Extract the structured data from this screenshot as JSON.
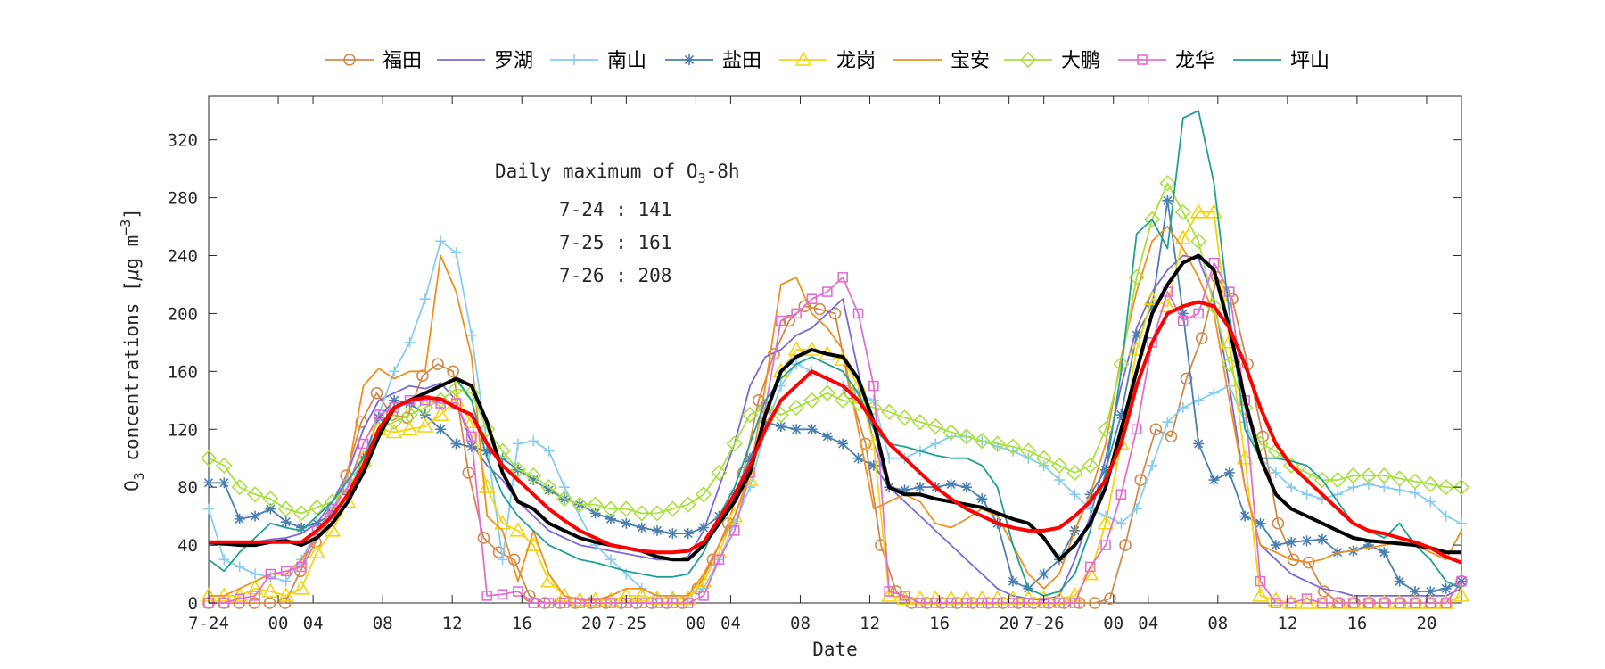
{
  "chart_data": {
    "type": "line",
    "xlabel": "Date",
    "ylabel_main": "O",
    "ylabel_sub": "3",
    "ylabel_rest": " concentrations [",
    "ylabel_mu": "μ",
    "ylabel_unit": "g m",
    "ylabel_sup": "−3",
    "ylabel_end": "]",
    "ylim": [
      0,
      350
    ],
    "yticks": [
      0,
      40,
      80,
      120,
      160,
      200,
      240,
      280,
      320
    ],
    "xlim": [
      0,
      72
    ],
    "xticks": [
      {
        "x": 0,
        "label": "7-24"
      },
      {
        "x": 4,
        "label": "00"
      },
      {
        "x": 6,
        "label": "04"
      },
      {
        "x": 10,
        "label": "08"
      },
      {
        "x": 14,
        "label": "12"
      },
      {
        "x": 18,
        "label": "16"
      },
      {
        "x": 22,
        "label": "20"
      },
      {
        "x": 24,
        "label": "7-25"
      },
      {
        "x": 28,
        "label": "00"
      },
      {
        "x": 30,
        "label": "04"
      },
      {
        "x": 34,
        "label": "08"
      },
      {
        "x": 38,
        "label": "12"
      },
      {
        "x": 42,
        "label": "16"
      },
      {
        "x": 46,
        "label": "20"
      },
      {
        "x": 48,
        "label": "7-26"
      },
      {
        "x": 52,
        "label": "00"
      },
      {
        "x": 54,
        "label": "04"
      },
      {
        "x": 58,
        "label": "08"
      },
      {
        "x": 62,
        "label": "12"
      },
      {
        "x": 66,
        "label": "16"
      },
      {
        "x": 70,
        "label": "20"
      }
    ],
    "annotation": {
      "title_main": "Daily maximum of O",
      "title_sub": "3",
      "title_end": "-8h",
      "lines": [
        "7-24 : 141",
        "7-25 : 161",
        "7-26 : 208"
      ]
    },
    "legend_position": "top",
    "grid": false,
    "series": [
      {
        "name": "福田",
        "color": "#d08a4e",
        "marker": "circle",
        "values": [
          0,
          0,
          0,
          0,
          0,
          0,
          22,
          42,
          60,
          88,
          125,
          145,
          130,
          128,
          157,
          165,
          160,
          90,
          45,
          35,
          30,
          5,
          0,
          0,
          0,
          0,
          0,
          0,
          0,
          0,
          0,
          0,
          10,
          30,
          55,
          90,
          140,
          172,
          195,
          205,
          203,
          200,
          145,
          110,
          40,
          8,
          0,
          0,
          0,
          0,
          0,
          0,
          0,
          0,
          0,
          0,
          0,
          0,
          0,
          3,
          40,
          85,
          120,
          115,
          155,
          183,
          225,
          210,
          165,
          115,
          55,
          30,
          28,
          8,
          0,
          0,
          0,
          0,
          0,
          0,
          0,
          0,
          15
        ]
      },
      {
        "name": "罗湖",
        "color": "#7b68d8",
        "marker": "none",
        "values": [
          40,
          40,
          40,
          42,
          44,
          45,
          48,
          55,
          70,
          90,
          120,
          140,
          145,
          150,
          148,
          152,
          140,
          110,
          95,
          85,
          70,
          60,
          50,
          45,
          40,
          38,
          36,
          34,
          32,
          30,
          30,
          32,
          50,
          80,
          110,
          150,
          170,
          175,
          185,
          190,
          200,
          210,
          160,
          110,
          80,
          70,
          60,
          50,
          40,
          30,
          20,
          10,
          5,
          3,
          2,
          5,
          30,
          60,
          100,
          150,
          190,
          215,
          230,
          240,
          238,
          210,
          150,
          80,
          40,
          30,
          20,
          15,
          10,
          8,
          5,
          5,
          5,
          5,
          5,
          5,
          5,
          10
        ]
      },
      {
        "name": "南山",
        "color": "#88ccf0",
        "marker": "plus",
        "values": [
          65,
          30,
          25,
          20,
          18,
          15,
          30,
          50,
          65,
          85,
          95,
          130,
          160,
          180,
          210,
          250,
          242,
          185,
          110,
          30,
          110,
          112,
          105,
          80,
          60,
          40,
          30,
          20,
          10,
          5,
          5,
          5,
          10,
          30,
          55,
          80,
          120,
          150,
          165,
          160,
          155,
          150,
          145,
          140,
          100,
          100,
          105,
          110,
          115,
          115,
          112,
          108,
          105,
          100,
          95,
          85,
          75,
          65,
          60,
          55,
          65,
          95,
          125,
          135,
          140,
          145,
          150,
          125,
          100,
          90,
          80,
          75,
          72,
          75,
          80,
          82,
          80,
          78,
          76,
          70,
          60,
          55
        ]
      },
      {
        "name": "盐田",
        "color": "#4a7fb0",
        "marker": "star",
        "values": [
          83,
          83,
          58,
          60,
          65,
          56,
          52,
          55,
          62,
          75,
          100,
          128,
          140,
          138,
          130,
          120,
          110,
          108,
          105,
          100,
          92,
          85,
          78,
          72,
          68,
          62,
          58,
          55,
          52,
          50,
          48,
          48,
          52,
          60,
          75,
          100,
          125,
          122,
          120,
          120,
          115,
          110,
          100,
          95,
          80,
          78,
          80,
          80,
          82,
          80,
          72,
          55,
          15,
          10,
          20,
          30,
          50,
          75,
          92,
          130,
          185,
          205,
          278,
          200,
          110,
          85,
          90,
          60,
          55,
          40,
          42,
          43,
          44,
          35,
          36,
          40,
          35,
          15,
          8,
          8,
          10,
          15
        ]
      },
      {
        "name": "龙岗",
        "color": "#f4d50c",
        "marker": "triangle",
        "values": [
          5,
          5,
          5,
          10,
          8,
          5,
          10,
          35,
          50,
          70,
          100,
          120,
          118,
          120,
          122,
          130,
          140,
          125,
          80,
          55,
          50,
          40,
          15,
          5,
          2,
          2,
          2,
          5,
          5,
          3,
          3,
          3,
          15,
          35,
          60,
          85,
          130,
          160,
          175,
          175,
          172,
          168,
          150,
          110,
          5,
          3,
          3,
          3,
          3,
          3,
          3,
          3,
          3,
          3,
          3,
          3,
          5,
          20,
          55,
          110,
          175,
          210,
          205,
          252,
          270,
          270,
          180,
          100,
          5,
          2,
          0,
          0,
          0,
          0,
          0,
          0,
          0,
          0,
          0,
          0,
          0,
          5
        ]
      },
      {
        "name": "宝安",
        "color": "#f09020",
        "marker": "none",
        "values": [
          5,
          5,
          10,
          15,
          20,
          20,
          30,
          45,
          60,
          90,
          150,
          162,
          155,
          160,
          160,
          240,
          215,
          170,
          60,
          50,
          15,
          50,
          20,
          5,
          2,
          2,
          5,
          10,
          10,
          5,
          5,
          5,
          20,
          40,
          60,
          90,
          150,
          220,
          225,
          200,
          190,
          175,
          120,
          65,
          70,
          75,
          70,
          55,
          52,
          58,
          65,
          60,
          40,
          20,
          10,
          20,
          50,
          75,
          110,
          170,
          215,
          250,
          260,
          245,
          225,
          200,
          140,
          80,
          40,
          35,
          30,
          28,
          30,
          35,
          36,
          38,
          40,
          42,
          40,
          35,
          30,
          50
        ]
      },
      {
        "name": "大鹏",
        "color": "#a8e040",
        "marker": "diamond",
        "values": [
          100,
          95,
          80,
          75,
          72,
          65,
          62,
          66,
          70,
          80,
          95,
          120,
          125,
          130,
          135,
          140,
          148,
          145,
          120,
          105,
          92,
          88,
          80,
          72,
          68,
          68,
          65,
          65,
          62,
          62,
          65,
          68,
          75,
          90,
          110,
          130,
          135,
          130,
          135,
          140,
          145,
          140,
          138,
          135,
          132,
          128,
          125,
          122,
          118,
          115,
          112,
          110,
          108,
          105,
          100,
          95,
          90,
          95,
          120,
          165,
          225,
          265,
          290,
          270,
          250,
          205,
          165,
          135,
          110,
          105,
          95,
          90,
          85,
          85,
          88,
          88,
          88,
          86,
          84,
          82,
          80,
          80
        ]
      },
      {
        "name": "龙华",
        "color": "#e070d0",
        "marker": "square",
        "values": [
          0,
          0,
          3,
          5,
          20,
          22,
          25,
          50,
          65,
          80,
          110,
          130,
          135,
          140,
          140,
          138,
          138,
          115,
          5,
          6,
          8,
          0,
          0,
          0,
          0,
          0,
          0,
          0,
          0,
          0,
          0,
          0,
          5,
          30,
          50,
          90,
          135,
          195,
          200,
          210,
          215,
          225,
          200,
          150,
          8,
          5,
          0,
          0,
          0,
          0,
          0,
          0,
          0,
          0,
          0,
          0,
          0,
          25,
          40,
          75,
          120,
          180,
          215,
          195,
          200,
          235,
          215,
          140,
          15,
          0,
          0,
          3,
          0,
          0,
          0,
          0,
          0,
          0,
          0,
          0,
          0,
          15
        ]
      },
      {
        "name": "坪山",
        "color": "#20a090",
        "marker": "none",
        "values": [
          30,
          22,
          35,
          45,
          55,
          52,
          50,
          60,
          70,
          85,
          100,
          120,
          135,
          140,
          145,
          150,
          155,
          140,
          100,
          75,
          60,
          50,
          40,
          35,
          30,
          28,
          25,
          22,
          20,
          18,
          18,
          20,
          35,
          60,
          80,
          110,
          140,
          155,
          165,
          170,
          165,
          160,
          145,
          120,
          110,
          108,
          105,
          102,
          100,
          100,
          95,
          80,
          40,
          10,
          5,
          8,
          20,
          50,
          90,
          160,
          255,
          265,
          245,
          335,
          340,
          290,
          200,
          120,
          100,
          100,
          98,
          95,
          85,
          70,
          55,
          50,
          45,
          55,
          40,
          30,
          15,
          10
        ]
      },
      {
        "name": "",
        "color": "#000000",
        "marker": "none",
        "width": 4,
        "values": [
          42,
          41,
          40,
          40,
          42,
          43,
          40,
          45,
          55,
          70,
          90,
          115,
          135,
          140,
          145,
          150,
          155,
          150,
          125,
          90,
          70,
          65,
          55,
          50,
          45,
          42,
          40,
          38,
          36,
          32,
          30,
          30,
          40,
          55,
          70,
          90,
          130,
          160,
          170,
          175,
          172,
          170,
          155,
          125,
          80,
          75,
          75,
          72,
          70,
          68,
          66,
          62,
          58,
          55,
          45,
          30,
          40,
          55,
          80,
          120,
          160,
          200,
          220,
          235,
          240,
          230,
          190,
          140,
          100,
          75,
          65,
          60,
          55,
          50,
          45,
          43,
          42,
          41,
          40,
          38,
          35,
          35
        ]
      },
      {
        "name": "",
        "color": "#ff0000",
        "marker": "none",
        "width": 4,
        "values": [
          42,
          42,
          42,
          42,
          42,
          42,
          42,
          50,
          60,
          75,
          95,
          120,
          135,
          140,
          142,
          141,
          135,
          130,
          110,
          95,
          85,
          75,
          65,
          57,
          50,
          45,
          40,
          38,
          36,
          35,
          35,
          36,
          42,
          58,
          75,
          95,
          120,
          140,
          150,
          160,
          155,
          150,
          140,
          125,
          110,
          100,
          90,
          80,
          72,
          65,
          60,
          55,
          52,
          50,
          50,
          52,
          60,
          70,
          85,
          110,
          150,
          180,
          200,
          205,
          208,
          205,
          190,
          165,
          135,
          110,
          95,
          85,
          75,
          65,
          55,
          50,
          48,
          45,
          42,
          38,
          32,
          28
        ]
      }
    ]
  }
}
